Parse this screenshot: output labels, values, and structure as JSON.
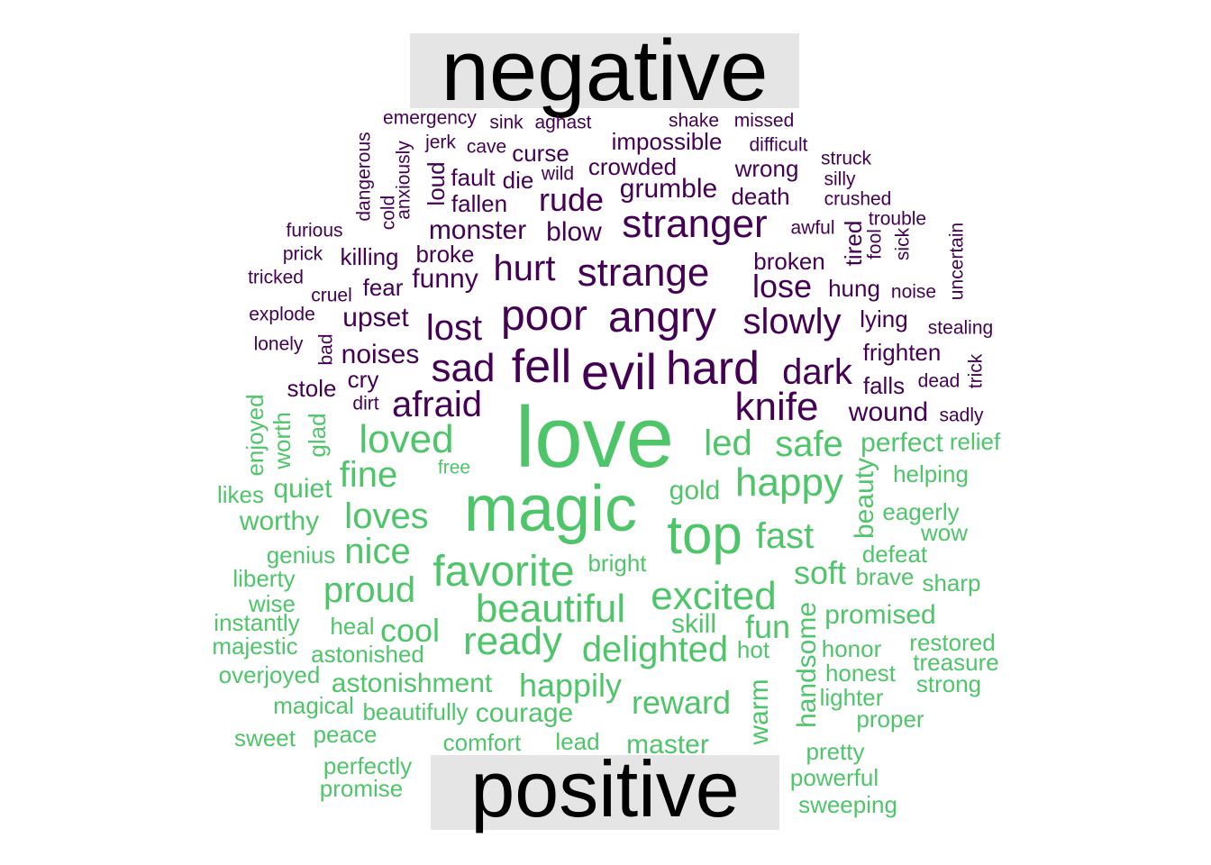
{
  "chart_data": {
    "type": "comparison_wordcloud",
    "colors": {
      "negative": "#440154",
      "positive": "#4fc56a",
      "label_bg": "#e5e5e5"
    },
    "groups": [
      {
        "name": "negative",
        "words": [
          "emergency",
          "sink",
          "aghast",
          "shake",
          "missed",
          "dangerous",
          "anxiously",
          "jerk",
          "cave",
          "curse",
          "impossible",
          "difficult",
          "struck",
          "loud",
          "fault",
          "die",
          "wild",
          "crowded",
          "wrong",
          "silly",
          "cold",
          "fallen",
          "rude",
          "grumble",
          "death",
          "crushed",
          "furious",
          "stranger",
          "awful",
          "trouble",
          "uncertain",
          "monster",
          "blow",
          "tired",
          "fool",
          "sick",
          "prick",
          "killing",
          "broke",
          "hurt",
          "strange",
          "broken",
          "tricked",
          "fear",
          "funny",
          "lose",
          "hung",
          "noise",
          "cruel",
          "explode",
          "poor",
          "angry",
          "slowly",
          "lying",
          "upset",
          "lost",
          "stealing",
          "lonely",
          "bad",
          "noises",
          "sad",
          "fell",
          "evil",
          "hard",
          "frighten",
          "trick",
          "cry",
          "dark",
          "falls",
          "dead",
          "stole",
          "afraid",
          "knife",
          "dirt",
          "wound",
          "sadly"
        ]
      },
      {
        "name": "positive",
        "words": [
          "love",
          "magic",
          "enjoyed",
          "worth",
          "glad",
          "loved",
          "led",
          "safe",
          "perfect",
          "relief",
          "free",
          "fine",
          "happy",
          "beauty",
          "helping",
          "likes",
          "quiet",
          "gold",
          "loves",
          "worthy",
          "top",
          "fast",
          "eagerly",
          "wow",
          "genius",
          "nice",
          "defeat",
          "favorite",
          "bright",
          "soft",
          "liberty",
          "brave",
          "sharp",
          "proud",
          "excited",
          "wise",
          "beautiful",
          "handsome",
          "promised",
          "instantly",
          "heal",
          "cool",
          "skill",
          "fun",
          "restored",
          "ready",
          "delighted",
          "majestic",
          "hot",
          "honor",
          "treasure",
          "astonished",
          "honest",
          "overjoyed",
          "astonishment",
          "happily",
          "strong",
          "warm",
          "lighter",
          "magical",
          "reward",
          "beautifully",
          "courage",
          "proper",
          "sweet",
          "peace",
          "comfort",
          "lead",
          "master",
          "pretty",
          "perfectly",
          "powerful",
          "promise",
          "sweeping"
        ]
      }
    ]
  }
}
